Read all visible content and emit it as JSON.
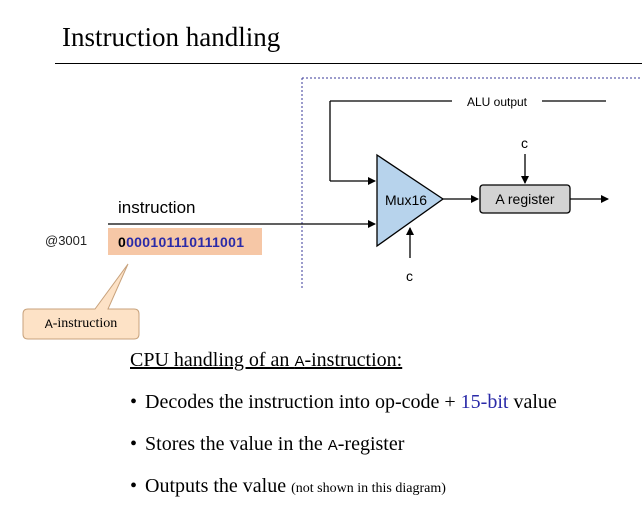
{
  "slide": {
    "title": "Instruction handling"
  },
  "diagram": {
    "alu_output_label": "ALU output",
    "mux_label": "Mux16",
    "a_register_label": "A register",
    "control_top": "c",
    "control_bottom": "c",
    "instruction_label": "instruction",
    "address": "@3001",
    "instruction_opcode_bit": "0",
    "instruction_value_bits": "000101110111001",
    "callout_prefix": "A",
    "callout_suffix": "-instruction"
  },
  "body": {
    "subhead_pre": "CPU handling of an ",
    "subhead_sc": "A",
    "subhead_post": "-instruction:",
    "bullet1_pre": "Decodes the instruction into op-code + ",
    "bullet1_blue": "15-bit",
    "bullet1_post": " value",
    "bullet2_pre": "Stores the value in the ",
    "bullet2_sc": "A",
    "bullet2_post": "-register",
    "bullet3_main": "Outputs the value ",
    "bullet3_small": "(not shown in this diagram)",
    "bullet_symbol": "•"
  },
  "colors": {
    "instruction_box": "#f6c7a6",
    "callout_fill": "#fde2c6",
    "value_bits": "#2a2aa8",
    "a_register_fill": "#d3d3d3",
    "dotted_border": "#3a3a9a"
  }
}
